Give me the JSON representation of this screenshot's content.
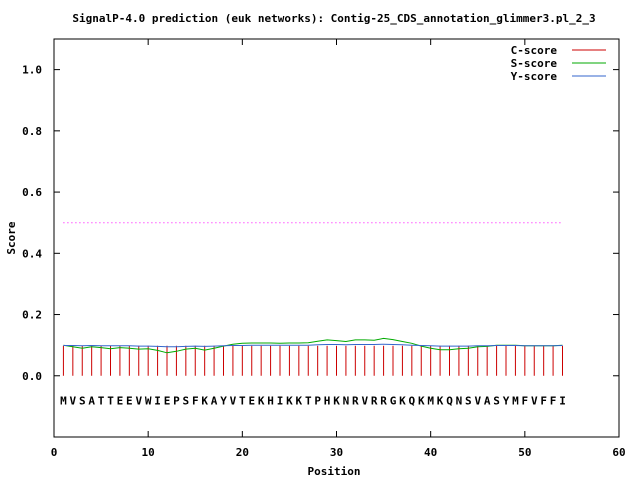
{
  "chart_data": {
    "type": "line",
    "title": "SignalP-4.0 prediction (euk networks): Contig-25_CDS_annotation_glimmer3.pl_2_3",
    "xlabel": "Position",
    "ylabel": "Score",
    "xlim": [
      0,
      60
    ],
    "ylim": [
      -0.2,
      1.1
    ],
    "xticks": [
      0,
      10,
      20,
      30,
      40,
      50,
      60
    ],
    "xtick_labels": [
      "0",
      "10",
      "20",
      "30",
      "40",
      "50",
      "60"
    ],
    "yticks": [
      0.0,
      0.2,
      0.4,
      0.6,
      0.8,
      1.0
    ],
    "ytick_labels": [
      "0.0",
      "0.2",
      "0.4",
      "0.6",
      "0.8",
      "1.0"
    ],
    "grid": false,
    "legend_position": "top-right",
    "threshold": {
      "value": 0.5,
      "x_range": [
        1,
        54
      ],
      "color": "#ff00ff"
    },
    "sequence": [
      "M",
      "V",
      "S",
      "A",
      "T",
      "T",
      "E",
      "E",
      "V",
      "W",
      "I",
      "E",
      "P",
      "S",
      "F",
      "K",
      "A",
      "Y",
      "V",
      "T",
      "E",
      "K",
      "H",
      "I",
      "K",
      "K",
      "T",
      "P",
      "H",
      "K",
      "N",
      "R",
      "V",
      "R",
      "R",
      "G",
      "K",
      "Q",
      "K",
      "M",
      "K",
      "Q",
      "N",
      "S",
      "V",
      "A",
      "S",
      "Y",
      "M",
      "F",
      "V",
      "F",
      "F",
      "I"
    ],
    "series": [
      {
        "name": "C-score",
        "style": "impulse",
        "color": "#cc0000",
        "x": [
          1,
          2,
          3,
          4,
          5,
          6,
          7,
          8,
          9,
          10,
          11,
          12,
          13,
          14,
          15,
          16,
          17,
          18,
          19,
          20,
          21,
          22,
          23,
          24,
          25,
          26,
          27,
          28,
          29,
          30,
          31,
          32,
          33,
          34,
          35,
          36,
          37,
          38,
          39,
          40,
          41,
          42,
          43,
          44,
          45,
          46,
          47,
          48,
          49,
          50,
          51,
          52,
          53,
          54
        ],
        "values": [
          0.098,
          0.098,
          0.098,
          0.098,
          0.098,
          0.098,
          0.098,
          0.098,
          0.098,
          0.098,
          0.098,
          0.098,
          0.098,
          0.098,
          0.098,
          0.098,
          0.098,
          0.098,
          0.098,
          0.098,
          0.098,
          0.098,
          0.098,
          0.098,
          0.098,
          0.098,
          0.098,
          0.098,
          0.098,
          0.098,
          0.098,
          0.098,
          0.098,
          0.098,
          0.098,
          0.098,
          0.098,
          0.098,
          0.098,
          0.098,
          0.098,
          0.098,
          0.098,
          0.098,
          0.098,
          0.098,
          0.098,
          0.098,
          0.098,
          0.098,
          0.098,
          0.098,
          0.098,
          0.098
        ]
      },
      {
        "name": "S-score",
        "style": "line",
        "color": "#00aa00",
        "x": [
          1,
          2,
          3,
          4,
          5,
          6,
          7,
          8,
          9,
          10,
          11,
          12,
          13,
          14,
          15,
          16,
          17,
          18,
          19,
          20,
          21,
          22,
          23,
          24,
          25,
          26,
          27,
          28,
          29,
          30,
          31,
          32,
          33,
          34,
          35,
          36,
          37,
          38,
          39,
          40,
          41,
          42,
          43,
          44,
          45,
          46,
          47,
          48,
          49,
          50,
          51,
          52,
          53,
          54
        ],
        "values": [
          0.1,
          0.095,
          0.09,
          0.095,
          0.092,
          0.088,
          0.092,
          0.09,
          0.087,
          0.088,
          0.083,
          0.075,
          0.08,
          0.087,
          0.09,
          0.084,
          0.09,
          0.097,
          0.103,
          0.106,
          0.107,
          0.107,
          0.107,
          0.106,
          0.107,
          0.107,
          0.108,
          0.113,
          0.117,
          0.115,
          0.112,
          0.117,
          0.117,
          0.116,
          0.122,
          0.118,
          0.112,
          0.106,
          0.097,
          0.09,
          0.085,
          0.085,
          0.088,
          0.09,
          0.095,
          0.096,
          0.1,
          0.1,
          0.1,
          0.098,
          0.098,
          0.098,
          0.098,
          0.1
        ]
      },
      {
        "name": "Y-score",
        "style": "line",
        "color": "#3366cc",
        "x": [
          1,
          2,
          3,
          4,
          5,
          6,
          7,
          8,
          9,
          10,
          11,
          12,
          13,
          14,
          15,
          16,
          17,
          18,
          19,
          20,
          21,
          22,
          23,
          24,
          25,
          26,
          27,
          28,
          29,
          30,
          31,
          32,
          33,
          34,
          35,
          36,
          37,
          38,
          39,
          40,
          41,
          42,
          43,
          44,
          45,
          46,
          47,
          48,
          49,
          50,
          51,
          52,
          53,
          54
        ],
        "values": [
          0.099,
          0.099,
          0.098,
          0.099,
          0.098,
          0.098,
          0.098,
          0.098,
          0.097,
          0.097,
          0.096,
          0.095,
          0.095,
          0.096,
          0.097,
          0.096,
          0.097,
          0.098,
          0.099,
          0.099,
          0.1,
          0.1,
          0.1,
          0.1,
          0.1,
          0.1,
          0.1,
          0.101,
          0.102,
          0.102,
          0.101,
          0.102,
          0.102,
          0.102,
          0.103,
          0.102,
          0.101,
          0.1,
          0.099,
          0.098,
          0.097,
          0.097,
          0.097,
          0.097,
          0.098,
          0.098,
          0.099,
          0.099,
          0.099,
          0.098,
          0.098,
          0.098,
          0.098,
          0.099
        ]
      }
    ]
  }
}
